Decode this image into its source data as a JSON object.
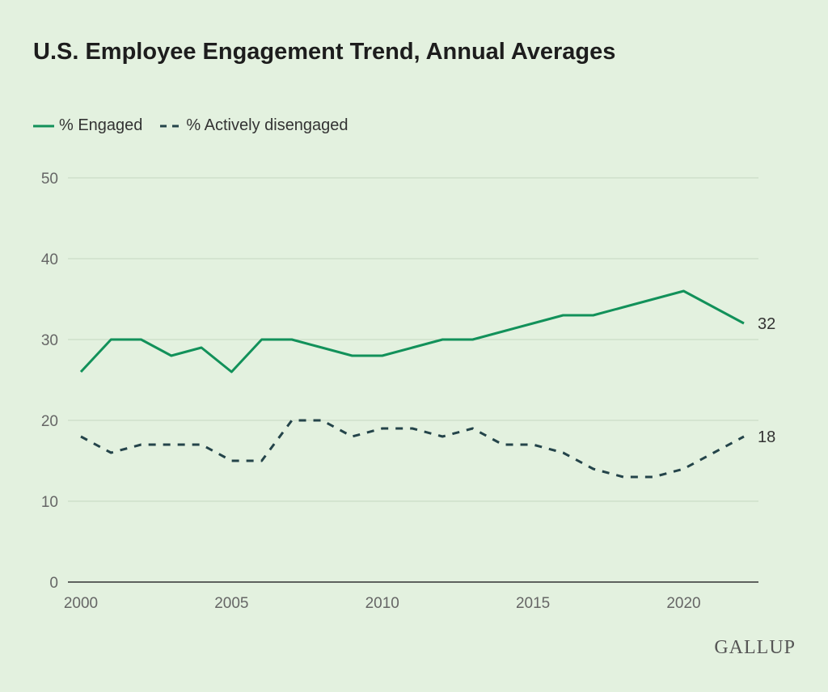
{
  "chart_data": {
    "type": "line",
    "title": "U.S. Employee Engagement Trend, Annual Averages",
    "x": [
      2000,
      2001,
      2002,
      2003,
      2004,
      2005,
      2006,
      2007,
      2008,
      2009,
      2010,
      2011,
      2012,
      2013,
      2014,
      2015,
      2016,
      2017,
      2018,
      2019,
      2020,
      2021,
      2022
    ],
    "series": [
      {
        "name": "% Engaged",
        "color": "#12915a",
        "style": "solid",
        "values": [
          26,
          30,
          30,
          28,
          29,
          26,
          30,
          30,
          29,
          28,
          28,
          29,
          30,
          30,
          31,
          32,
          33,
          33,
          34,
          35,
          36,
          34,
          32
        ],
        "end_label": "32"
      },
      {
        "name": "% Actively disengaged",
        "color": "#24444a",
        "style": "dashed",
        "values": [
          18,
          16,
          17,
          17,
          17,
          15,
          15,
          20,
          20,
          18,
          19,
          19,
          18,
          19,
          17,
          17,
          16,
          14,
          13,
          13,
          14,
          16,
          18
        ],
        "end_label": "18"
      }
    ],
    "xticks": [
      "2000",
      "2005",
      "2010",
      "2015",
      "2020"
    ],
    "yticks": [
      "0",
      "10",
      "20",
      "30",
      "40",
      "50"
    ],
    "ylim": [
      0,
      50
    ],
    "xlim": [
      2000,
      2022
    ],
    "grid": "horizontal",
    "legend": "top-left",
    "background": "#e3f1df"
  },
  "brand": {
    "logo": "GALLUP"
  }
}
